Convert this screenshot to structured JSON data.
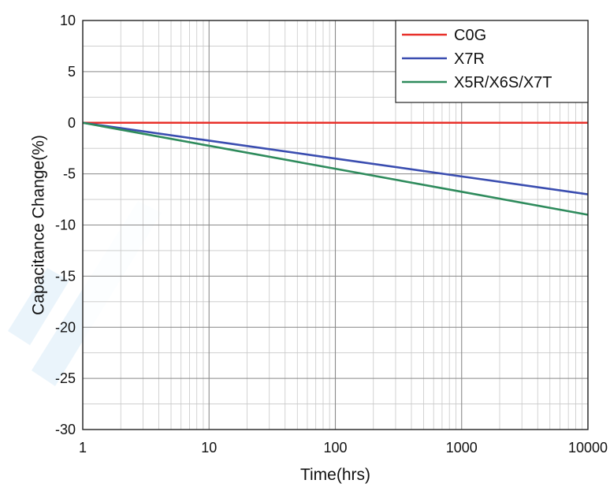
{
  "chart_data": {
    "type": "line",
    "title": "",
    "xlabel": "Time(hrs)",
    "ylabel": "Capacitance Change(%)",
    "x_scale": "log",
    "xlim": [
      1,
      10000
    ],
    "ylim": [
      -30,
      10
    ],
    "x_ticks": [
      1,
      10,
      100,
      1000,
      10000
    ],
    "x_tick_labels": [
      "1",
      "10",
      "100",
      "1000",
      "10000"
    ],
    "y_ticks": [
      10,
      5,
      0,
      -5,
      -10,
      -15,
      -20,
      -25,
      -30
    ],
    "y_tick_labels": [
      "10",
      "5",
      "0",
      "-5",
      "-10",
      "-15",
      "-20",
      "-25",
      "-30"
    ],
    "grid": true,
    "legend_position": "top-right",
    "series": [
      {
        "name": "C0G",
        "color": "#e8302a",
        "x": [
          1,
          10,
          100,
          1000,
          10000
        ],
        "y": [
          0,
          0,
          0,
          0,
          0
        ]
      },
      {
        "name": "X7R",
        "color": "#3a4db0",
        "x": [
          1,
          10,
          100,
          1000,
          10000
        ],
        "y": [
          0,
          -1.75,
          -3.5,
          -5.25,
          -7.0
        ]
      },
      {
        "name": "X5R/X6S/X7T",
        "color": "#2e8b5c",
        "x": [
          1,
          10,
          100,
          1000,
          10000
        ],
        "y": [
          0,
          -2.25,
          -4.5,
          -6.75,
          -9.0
        ]
      }
    ]
  }
}
